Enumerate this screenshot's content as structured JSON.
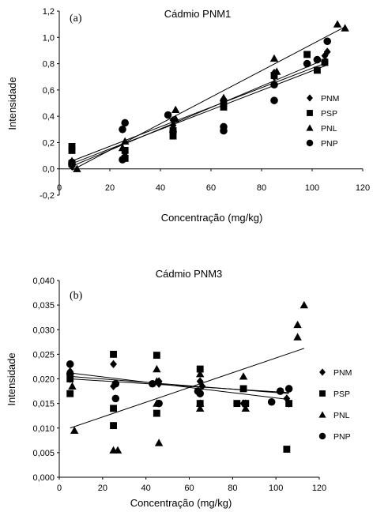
{
  "chart_data": [
    {
      "type": "scatter",
      "panel_label": "(a)",
      "title": "Cádmio PNM1",
      "xlabel": "Concentração (mg/kg)",
      "ylabel": "Intensidade",
      "xlim": [
        0,
        120
      ],
      "ylim": [
        -0.2,
        1.2
      ],
      "xticks": [
        "0",
        "20",
        "40",
        "60",
        "80",
        "100",
        "120"
      ],
      "yticks": [
        "-0,2",
        "0,0",
        "0,2",
        "0,4",
        "0,6",
        "0,8",
        "1,0",
        "1,2"
      ],
      "legend_position": "right",
      "series": [
        {
          "name": "PNM",
          "marker": "diamond",
          "points": [
            [
              5,
              0.05
            ],
            [
              5,
              0.02
            ],
            [
              26,
              0.1
            ],
            [
              26,
              0.13
            ],
            [
              45,
              0.33
            ],
            [
              45,
              0.37
            ],
            [
              65,
              0.5
            ],
            [
              65,
              0.53
            ],
            [
              85,
              0.7
            ],
            [
              85,
              0.73
            ],
            [
              105,
              0.86
            ],
            [
              106,
              0.89
            ]
          ],
          "fit": [
            [
              5,
              0.02
            ],
            [
              106,
              0.84
            ]
          ]
        },
        {
          "name": "PSP",
          "marker": "square",
          "points": [
            [
              5,
              0.17
            ],
            [
              5,
              0.14
            ],
            [
              5,
              0.04
            ],
            [
              26,
              0.08
            ],
            [
              26,
              0.14
            ],
            [
              45,
              0.25
            ],
            [
              45,
              0.29
            ],
            [
              65,
              0.47
            ],
            [
              65,
              0.5
            ],
            [
              85,
              0.71
            ],
            [
              98,
              0.87
            ],
            [
              102,
              0.75
            ],
            [
              105,
              0.81
            ]
          ],
          "fit": [
            [
              5,
              0.06
            ],
            [
              106,
              0.81
            ]
          ]
        },
        {
          "name": "PNL",
          "marker": "triangle",
          "points": [
            [
              5,
              0.06
            ],
            [
              7,
              0.0
            ],
            [
              25,
              0.16
            ],
            [
              26,
              0.21
            ],
            [
              46,
              0.38
            ],
            [
              46,
              0.45
            ],
            [
              65,
              0.54
            ],
            [
              85,
              0.84
            ],
            [
              86,
              0.74
            ],
            [
              110,
              1.1
            ],
            [
              113,
              1.07
            ]
          ],
          "fit": [
            [
              5,
              -0.01
            ],
            [
              113,
              1.08
            ]
          ]
        },
        {
          "name": "PNP",
          "marker": "circle",
          "points": [
            [
              5,
              0.05
            ],
            [
              5,
              0.03
            ],
            [
              25,
              0.07
            ],
            [
              25,
              0.3
            ],
            [
              26,
              0.35
            ],
            [
              43,
              0.41
            ],
            [
              45,
              0.28
            ],
            [
              65,
              0.29
            ],
            [
              65,
              0.32
            ],
            [
              85,
              0.52
            ],
            [
              85,
              0.64
            ],
            [
              98,
              0.8
            ],
            [
              102,
              0.83
            ],
            [
              106,
              0.97
            ]
          ],
          "fit": [
            [
              5,
              0.04
            ],
            [
              106,
              0.79
            ]
          ]
        }
      ]
    },
    {
      "type": "scatter",
      "panel_label": "(b)",
      "title": "Cádmio PNM3",
      "xlabel": "Concentração (mg/kg)",
      "ylabel": "Intensidade",
      "xlim": [
        0,
        120
      ],
      "ylim": [
        0,
        0.04
      ],
      "xticks": [
        "0",
        "20",
        "40",
        "60",
        "80",
        "100",
        "120"
      ],
      "yticks": [
        "0,000",
        "0,005",
        "0,010",
        "0,015",
        "0,020",
        "0,025",
        "0,030",
        "0,035",
        "0,040"
      ],
      "legend_position": "right",
      "series": [
        {
          "name": "PNM",
          "marker": "diamond",
          "points": [
            [
              5,
              0.0215
            ],
            [
              5,
              0.02
            ],
            [
              25,
              0.023
            ],
            [
              25,
              0.0185
            ],
            [
              46,
              0.019
            ],
            [
              46,
              0.0195
            ],
            [
              65,
              0.0195
            ],
            [
              66,
              0.0185
            ],
            [
              85,
              0.015
            ],
            [
              86,
              0.015
            ],
            [
              105,
              0.016
            ],
            [
              106,
              0.015
            ]
          ],
          "fit": [
            [
              5,
              0.0212
            ],
            [
              106,
              0.0158
            ]
          ]
        },
        {
          "name": "PSP",
          "marker": "square",
          "points": [
            [
              5,
              0.02
            ],
            [
              5,
              0.017
            ],
            [
              25,
              0.025
            ],
            [
              25,
              0.014
            ],
            [
              25,
              0.0105
            ],
            [
              45,
              0.0248
            ],
            [
              45,
              0.013
            ],
            [
              65,
              0.022
            ],
            [
              65,
              0.015
            ],
            [
              85,
              0.018
            ],
            [
              82,
              0.015
            ],
            [
              86,
              0.015
            ],
            [
              105,
              0.0057
            ],
            [
              106,
              0.015
            ]
          ],
          "fit": [
            [
              5,
              0.0205
            ],
            [
              106,
              0.017
            ]
          ]
        },
        {
          "name": "PNL",
          "marker": "triangle",
          "points": [
            [
              6,
              0.0185
            ],
            [
              7,
              0.0095
            ],
            [
              25,
              0.0055
            ],
            [
              27,
              0.0055
            ],
            [
              45,
              0.022
            ],
            [
              45,
              0.0195
            ],
            [
              45,
              0.015
            ],
            [
              46,
              0.007
            ],
            [
              65,
              0.021
            ],
            [
              65,
              0.015
            ],
            [
              65,
              0.014
            ],
            [
              85,
              0.0205
            ],
            [
              86,
              0.014
            ],
            [
              110,
              0.031
            ],
            [
              110,
              0.0285
            ],
            [
              113,
              0.035
            ]
          ],
          "fit": [
            [
              5,
              0.01
            ],
            [
              113,
              0.0262
            ]
          ]
        },
        {
          "name": "PNP",
          "marker": "circle",
          "points": [
            [
              5,
              0.023
            ],
            [
              5,
              0.021
            ],
            [
              26,
              0.019
            ],
            [
              26,
              0.016
            ],
            [
              43,
              0.019
            ],
            [
              46,
              0.015
            ],
            [
              64,
              0.0175
            ],
            [
              65,
              0.017
            ],
            [
              98,
              0.0153
            ],
            [
              102,
              0.0175
            ],
            [
              106,
              0.018
            ]
          ],
          "fit": [
            [
              5,
              0.02
            ],
            [
              106,
              0.0172
            ]
          ]
        }
      ]
    }
  ]
}
